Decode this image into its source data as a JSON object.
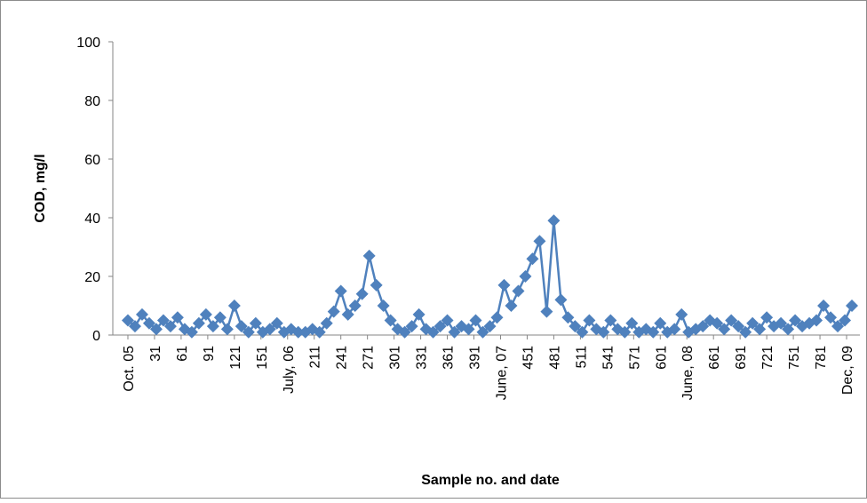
{
  "chart_data": {
    "type": "line",
    "x_label": "Sample no. and date",
    "y_label": "COD, mg/l",
    "color": "#4f81bd",
    "marker": "diamond",
    "x": [
      1,
      9,
      17,
      25,
      33,
      41,
      49,
      57,
      65,
      73,
      81,
      89,
      97,
      105,
      113,
      121,
      129,
      137,
      145,
      153,
      161,
      169,
      177,
      185,
      193,
      201,
      209,
      217,
      225,
      233,
      241,
      249,
      257,
      265,
      273,
      281,
      289,
      297,
      305,
      313,
      321,
      329,
      337,
      345,
      353,
      361,
      369,
      377,
      385,
      393,
      401,
      409,
      417,
      425,
      433,
      441,
      449,
      457,
      465,
      473,
      481,
      489,
      497,
      505,
      513,
      521,
      529,
      537,
      545,
      553,
      561,
      569,
      577,
      585,
      593,
      601,
      609,
      617,
      625,
      633,
      641,
      649,
      657,
      665,
      673,
      681,
      689,
      697,
      705,
      713,
      721,
      729,
      737,
      745,
      753,
      761,
      769,
      777,
      785,
      793,
      801,
      809,
      817
    ],
    "values": [
      5,
      3,
      7,
      4,
      2,
      5,
      3,
      6,
      2,
      1,
      4,
      7,
      3,
      6,
      2,
      10,
      3,
      1,
      4,
      1,
      2,
      4,
      1,
      2,
      1,
      1,
      2,
      1,
      4,
      8,
      15,
      7,
      10,
      14,
      27,
      17,
      10,
      5,
      2,
      1,
      3,
      7,
      2,
      1,
      3,
      5,
      1,
      3,
      2,
      5,
      1,
      3,
      6,
      17,
      10,
      15,
      20,
      26,
      32,
      8,
      39,
      12,
      6,
      3,
      1,
      5,
      2,
      1,
      5,
      2,
      1,
      4,
      1,
      2,
      1,
      4,
      1,
      2,
      7,
      1,
      2,
      3,
      5,
      4,
      2,
      5,
      3,
      1,
      4,
      2,
      6,
      3,
      4,
      2,
      5,
      3,
      4,
      5,
      10,
      6,
      3,
      5,
      10
    ],
    "xlim": [
      -16,
      826
    ],
    "xticks": [
      {
        "value": 1,
        "label": "Oct. 05"
      },
      31,
      61,
      91,
      121,
      151,
      {
        "value": 181,
        "label": "July, 06"
      },
      211,
      241,
      271,
      301,
      331,
      361,
      391,
      {
        "value": 421,
        "label": "June, 07"
      },
      451,
      481,
      511,
      541,
      571,
      601,
      {
        "value": 631,
        "label": "June, 08"
      },
      661,
      691,
      721,
      751,
      781,
      {
        "value": 811,
        "label": "Dec, 09"
      }
    ],
    "ylim": [
      0,
      100
    ],
    "yticks": [
      0,
      20,
      40,
      60,
      80,
      100
    ],
    "grid": false
  }
}
